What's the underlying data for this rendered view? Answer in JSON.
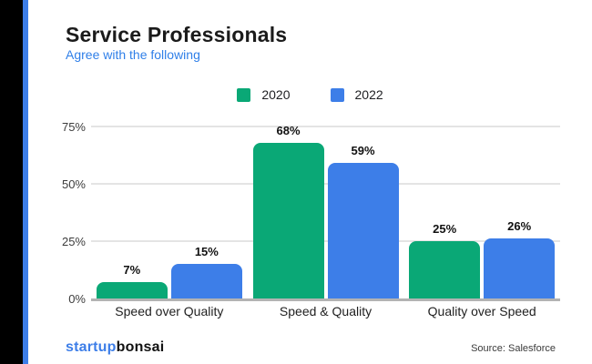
{
  "accent": {
    "band_color": "#000000",
    "stripe_color": "#3d7ee8"
  },
  "header": {
    "title": "Service Professionals",
    "subtitle": "Agree with the following",
    "title_color": "#1b1b1b",
    "subtitle_color": "#2f7fe8"
  },
  "chart_data": {
    "type": "bar",
    "title": "Service Professionals — Agree with the following",
    "categories": [
      "Speed over Quality",
      "Speed & Quality",
      "Quality over Speed"
    ],
    "series": [
      {
        "name": "2020",
        "color": "#0aa876",
        "values": [
          7,
          68,
          25
        ]
      },
      {
        "name": "2022",
        "color": "#3d7ee8",
        "values": [
          15,
          59,
          26
        ]
      }
    ],
    "value_suffix": "%",
    "yticks": [
      0,
      25,
      50,
      75
    ],
    "ytick_suffix": "%",
    "ylim": [
      0,
      75
    ],
    "grid": true,
    "legend_position": "top"
  },
  "footer": {
    "logo_part1": "startup",
    "logo_part2": "bonsai",
    "logo_color1": "#3d7ee8",
    "logo_color2": "#121212",
    "source": "Source: Salesforce"
  }
}
